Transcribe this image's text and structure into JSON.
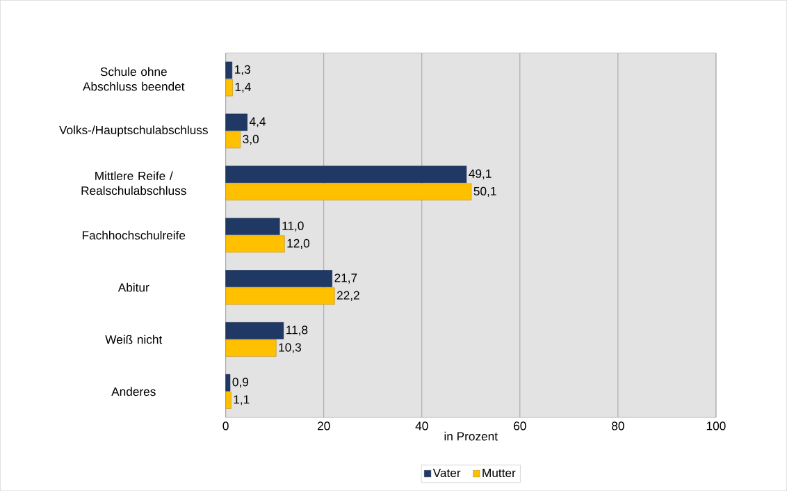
{
  "chart_data": {
    "type": "bar",
    "orientation": "horizontal",
    "xlabel": "in Prozent",
    "categories": [
      "Schule ohne Abschluss beendet",
      "Volks-/Hauptschulabschluss",
      "Mittlere Reife / Realschulabschluss",
      "Fachhochschulreife",
      "Abitur",
      "Weiß nicht",
      "Anderes"
    ],
    "series": [
      {
        "name": "Vater",
        "color": "#1f3864",
        "values": [
          1.3,
          4.4,
          49.1,
          11.0,
          21.7,
          11.8,
          0.9
        ],
        "value_labels": [
          "1,3",
          "4,4",
          "49,1",
          "11,0",
          "21,7",
          "11,8",
          "0,9"
        ]
      },
      {
        "name": "Mutter",
        "color": "#ffc000",
        "values": [
          1.4,
          3.0,
          50.1,
          12.0,
          22.2,
          10.3,
          1.1
        ],
        "value_labels": [
          "1,4",
          "3,0",
          "50,1",
          "12,0",
          "22,2",
          "10,3",
          "1,1"
        ]
      }
    ],
    "xlim": [
      0,
      100
    ],
    "xticks": [
      0,
      20,
      40,
      60,
      80,
      100
    ],
    "grid": "x",
    "legend": "bottom"
  }
}
